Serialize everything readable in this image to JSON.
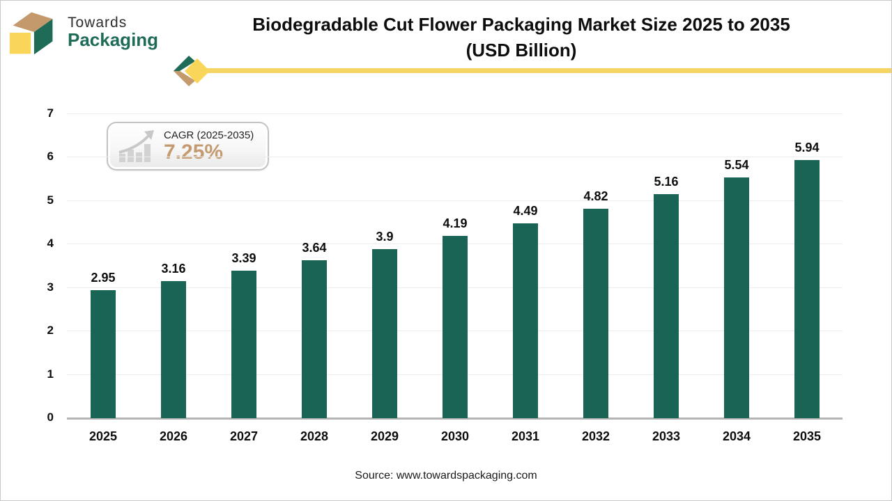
{
  "logo": {
    "line1": "Towards",
    "line2": "Packaging"
  },
  "title": {
    "line1": "Biodegradable Cut Flower Packaging Market Size 2025 to 2035",
    "line2": "(USD Billion)"
  },
  "cagr": {
    "label": "CAGR (2025-2035)",
    "value": "7.25%"
  },
  "source": "Source: www.towardspackaging.com",
  "colors": {
    "bar": "#1A6456",
    "accent_yellow": "#F5D463",
    "logo_green": "#1E6B58",
    "logo_tan": "#C49A6C",
    "logo_yellow": "#F9D65A",
    "cagr_value_tan": "#C49B71"
  },
  "chart_data": {
    "type": "bar",
    "title": "Biodegradable Cut Flower Packaging Market Size 2025 to 2035 (USD Billion)",
    "categories": [
      "2025",
      "2026",
      "2027",
      "2028",
      "2029",
      "2030",
      "2031",
      "2032",
      "2033",
      "2034",
      "2035"
    ],
    "values": [
      2.95,
      3.16,
      3.39,
      3.64,
      3.9,
      4.19,
      4.49,
      4.82,
      5.16,
      5.54,
      5.94
    ],
    "value_labels": [
      "2.95",
      "3.16",
      "3.39",
      "3.64",
      "3.9",
      "4.19",
      "4.49",
      "4.82",
      "5.16",
      "5.54",
      "5.94"
    ],
    "xlabel": "",
    "ylabel": "",
    "ylim": [
      0,
      7
    ],
    "yticks": [
      0,
      1,
      2,
      3,
      4,
      5,
      6,
      7
    ],
    "grid": true,
    "legend": "none"
  }
}
